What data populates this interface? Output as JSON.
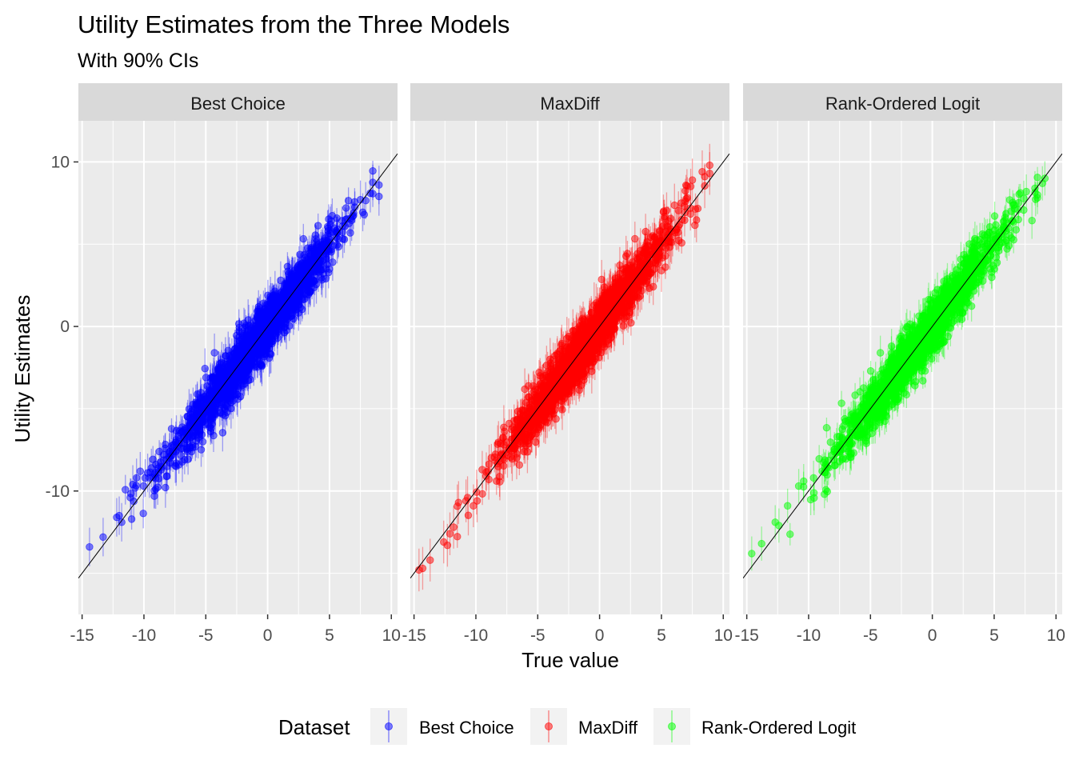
{
  "chart_data": {
    "type": "scatter",
    "title": "Utility Estimates from the Three Models",
    "subtitle": "With 90% CIs",
    "xlabel": "True value",
    "ylabel": "Utility Estimates",
    "xlim": [
      -15.3,
      10.5
    ],
    "ylim": [
      -17.5,
      12.5
    ],
    "x_ticks": [
      -15,
      -10,
      -5,
      0,
      5,
      10
    ],
    "x_tick_labels": [
      "-15",
      "-10",
      "-5",
      "0",
      "5",
      "10"
    ],
    "y_ticks": [
      -10,
      0,
      10
    ],
    "y_tick_labels": [
      "-10",
      "0",
      "10"
    ],
    "grid": true,
    "reference_line": {
      "type": "identity",
      "slope": 1,
      "intercept": 0
    },
    "legend": {
      "title": "Dataset",
      "position": "bottom",
      "entries": [
        "Best Choice",
        "MaxDiff",
        "Rank-Ordered Logit"
      ]
    },
    "facets": [
      {
        "label": "Best Choice",
        "color": "#0000ff",
        "n_points": 1800,
        "ci_half_width_approx": 0.9,
        "points": [
          {
            "x": -14.4,
            "y": -13.4
          },
          {
            "x": -13.3,
            "y": -12.8
          },
          {
            "x": -12.2,
            "y": -11.6
          },
          {
            "x": -12.0,
            "y": -11.5
          },
          {
            "x": -11.8,
            "y": -11.9
          },
          {
            "x": -11.1,
            "y": -10.4
          },
          {
            "x": -10.9,
            "y": -9.6
          },
          {
            "x": -10.6,
            "y": -9.2
          },
          {
            "x": -10.3,
            "y": -8.8
          },
          {
            "x": -9.7,
            "y": -8.9
          },
          {
            "x": -9.4,
            "y": -8.6
          },
          {
            "x": -9.1,
            "y": -8.9
          },
          {
            "x": -8.6,
            "y": -8.7
          },
          {
            "x": -8.4,
            "y": -7.8
          },
          {
            "x": -7.9,
            "y": -7.6
          },
          {
            "x": -4.3,
            "y": -1.6
          },
          {
            "x": 4.7,
            "y": 2.9
          },
          {
            "x": 7.5,
            "y": 7.7
          },
          {
            "x": 8.3,
            "y": 8.1
          },
          {
            "x": 9.0,
            "y": 8.6
          },
          {
            "x": 9.0,
            "y": 7.9
          }
        ]
      },
      {
        "label": "MaxDiff",
        "color": "#ff0000",
        "n_points": 1800,
        "ci_half_width_approx": 1.0,
        "points": [
          {
            "x": -14.6,
            "y": -14.8
          },
          {
            "x": -14.3,
            "y": -14.7
          },
          {
            "x": -13.7,
            "y": -14.2
          },
          {
            "x": -12.6,
            "y": -13.1
          },
          {
            "x": -12.3,
            "y": -13.3
          },
          {
            "x": -12.1,
            "y": -12.6
          },
          {
            "x": -11.8,
            "y": -12.2
          },
          {
            "x": -11.4,
            "y": -10.7
          },
          {
            "x": -10.8,
            "y": -10.6
          },
          {
            "x": -10.2,
            "y": -10.9
          },
          {
            "x": -9.9,
            "y": -10.6
          },
          {
            "x": -4.0,
            "y": -2.0
          },
          {
            "x": 5.0,
            "y": 3.4
          },
          {
            "x": 7.5,
            "y": 8.9
          },
          {
            "x": 8.3,
            "y": 9.4
          },
          {
            "x": 8.9,
            "y": 9.8
          },
          {
            "x": 8.9,
            "y": 9.3
          }
        ]
      },
      {
        "label": "Rank-Ordered Logit",
        "color": "#00ff00",
        "n_points": 1800,
        "ci_half_width_approx": 0.8,
        "points": [
          {
            "x": -14.6,
            "y": -13.8
          },
          {
            "x": -13.8,
            "y": -13.2
          },
          {
            "x": -12.7,
            "y": -11.9
          },
          {
            "x": -12.4,
            "y": -12.1
          },
          {
            "x": -11.7,
            "y": -10.9
          },
          {
            "x": -10.8,
            "y": -9.7
          },
          {
            "x": -10.4,
            "y": -9.4
          },
          {
            "x": -9.6,
            "y": -9.2
          },
          {
            "x": -8.9,
            "y": -8.8
          },
          {
            "x": -8.4,
            "y": -8.6
          },
          {
            "x": -4.2,
            "y": -1.6
          },
          {
            "x": 4.8,
            "y": 3.3
          },
          {
            "x": 7.6,
            "y": 8.2
          },
          {
            "x": 8.3,
            "y": 8.4
          },
          {
            "x": 8.9,
            "y": 8.7
          },
          {
            "x": 9.1,
            "y": 9.0
          }
        ]
      }
    ]
  }
}
